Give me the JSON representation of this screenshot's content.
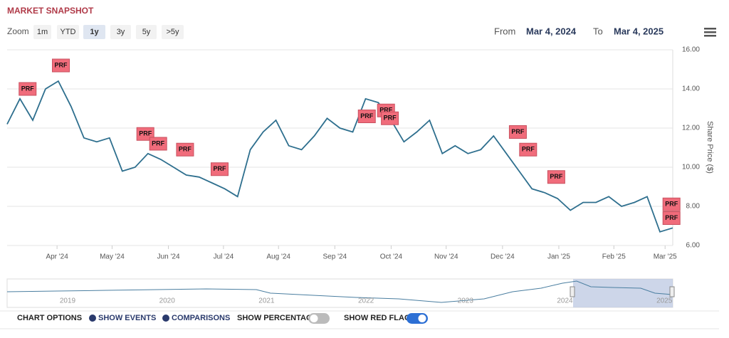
{
  "header": {
    "title": "MARKET SNAPSHOT",
    "zoom_label": "Zoom",
    "zoom_buttons": [
      "1m",
      "YTD",
      "1y",
      "3y",
      "5y",
      ">5y"
    ],
    "zoom_selected": "1y",
    "from_label": "From",
    "from_date": "Mar 4, 2024",
    "to_label": "To",
    "to_date": "Mar 4, 2025"
  },
  "chart_data": {
    "type": "line",
    "y_label": "Share Price ($)",
    "color": "#2e6f8e",
    "values": [
      12.2,
      13.5,
      12.4,
      14.0,
      14.4,
      13.1,
      11.5,
      11.3,
      11.5,
      9.8,
      10.0,
      10.7,
      10.4,
      10.0,
      9.6,
      9.5,
      9.2,
      8.9,
      8.5,
      10.9,
      11.8,
      12.4,
      11.1,
      10.9,
      11.6,
      12.5,
      12.0,
      11.8,
      13.5,
      13.3,
      12.4,
      11.3,
      11.8,
      12.4,
      10.7,
      11.1,
      10.7,
      10.9,
      11.6,
      10.7,
      9.8,
      8.9,
      8.7,
      8.4,
      7.8,
      8.2,
      8.2,
      8.5,
      8.0,
      8.2,
      8.5,
      6.7,
      6.9
    ],
    "xlim": [
      0,
      52
    ],
    "xticks": [
      {
        "value": 3.9,
        "label": "Apr '24"
      },
      {
        "value": 8.2,
        "label": "May '24"
      },
      {
        "value": 12.6,
        "label": "Jun '24"
      },
      {
        "value": 16.9,
        "label": "Jul '24"
      },
      {
        "value": 21.2,
        "label": "Aug '24"
      },
      {
        "value": 25.6,
        "label": "Sep '24"
      },
      {
        "value": 30,
        "label": "Oct '24"
      },
      {
        "value": 34.3,
        "label": "Nov '24"
      },
      {
        "value": 38.7,
        "label": "Dec '24"
      },
      {
        "value": 43.1,
        "label": "Jan '25"
      },
      {
        "value": 47.4,
        "label": "Feb '25"
      },
      {
        "value": 51.4,
        "label": "Mar '25"
      }
    ],
    "ylim": [
      6,
      16
    ],
    "yticks": [
      {
        "value": 6,
        "label": "6.00"
      },
      {
        "value": 8,
        "label": "8.00"
      },
      {
        "value": 10,
        "label": "10.00"
      },
      {
        "value": 12,
        "label": "12.00"
      },
      {
        "value": 14,
        "label": "14.00"
      },
      {
        "value": 16,
        "label": "16.00"
      }
    ],
    "grid": true,
    "flags": [
      {
        "label": "PRF",
        "x": 1.6,
        "y": 14.0
      },
      {
        "label": "PRF",
        "x": 4.2,
        "y": 15.2
      },
      {
        "label": "PRF",
        "x": 10.8,
        "y": 11.7
      },
      {
        "label": "PRF",
        "x": 11.8,
        "y": 11.2
      },
      {
        "label": "PRF",
        "x": 13.9,
        "y": 10.9
      },
      {
        "label": "PRF",
        "x": 16.6,
        "y": 9.9
      },
      {
        "label": "PRF",
        "x": 28.1,
        "y": 12.6
      },
      {
        "label": "PRF",
        "x": 29.6,
        "y": 12.9
      },
      {
        "label": "PRF",
        "x": 29.9,
        "y": 12.5
      },
      {
        "label": "PRF",
        "x": 39.9,
        "y": 11.8
      },
      {
        "label": "PRF",
        "x": 40.7,
        "y": 10.9
      },
      {
        "label": "PRF",
        "x": 42.9,
        "y": 9.5
      },
      {
        "label": "PRF",
        "x": 51.9,
        "y": 8.1
      },
      {
        "label": "PRF",
        "x": 51.9,
        "y": 7.4
      }
    ]
  },
  "navigator": {
    "years": [
      "2019",
      "2020",
      "2021",
      "2022",
      "2023",
      "2024",
      "2025"
    ]
  },
  "options": {
    "title": "CHART OPTIONS",
    "show_events": "SHOW EVENTS",
    "comparisons": "COMPARISONS",
    "show_percentage": "SHOW PERCENTAGE",
    "percentage_on": false,
    "show_red_flags": "SHOW RED FLAGS",
    "red_flags_on": true
  }
}
